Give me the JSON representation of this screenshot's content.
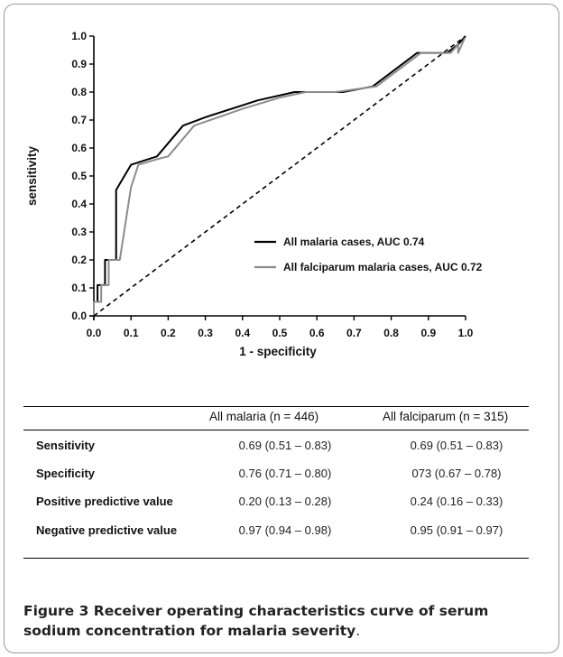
{
  "chart_data": {
    "type": "line",
    "xlabel": "1 - specificity",
    "ylabel": "sensitivity",
    "xlim": [
      0,
      1
    ],
    "ylim": [
      0,
      1
    ],
    "x_ticks": [
      "0.0",
      "0.1",
      "0.2",
      "0.3",
      "0.4",
      "0.5",
      "0.6",
      "0.7",
      "0.8",
      "0.9",
      "1.0"
    ],
    "y_ticks": [
      "0.0",
      "0.1",
      "0.2",
      "0.3",
      "0.4",
      "0.5",
      "0.6",
      "0.7",
      "0.8",
      "0.9",
      "1.0"
    ],
    "grid": false,
    "legend_position": "center-right",
    "series": [
      {
        "name": "All malaria cases, AUC 0.74",
        "color": "#000000",
        "x": [
          0,
          0,
          0.01,
          0.01,
          0.03,
          0.03,
          0.05,
          0.06,
          0.06,
          0.1,
          0.17,
          0.24,
          0.3,
          0.44,
          0.54,
          0.6,
          0.67,
          0.75,
          0.87,
          0.92,
          0.95,
          0.98,
          1.0
        ],
        "y": [
          0,
          0.05,
          0.05,
          0.11,
          0.11,
          0.2,
          0.2,
          0.2,
          0.45,
          0.54,
          0.57,
          0.68,
          0.71,
          0.77,
          0.8,
          0.8,
          0.8,
          0.82,
          0.94,
          0.94,
          0.94,
          0.97,
          1.0
        ]
      },
      {
        "name": "All falciparum malaria cases,  AUC 0.72",
        "color": "#8c8c8c",
        "x": [
          0,
          0,
          0.02,
          0.02,
          0.04,
          0.04,
          0.07,
          0.1,
          0.12,
          0.17,
          0.2,
          0.27,
          0.4,
          0.5,
          0.57,
          0.65,
          0.76,
          0.88,
          0.93,
          0.96,
          0.98,
          0.98,
          1.0
        ],
        "y": [
          0,
          0.05,
          0.05,
          0.11,
          0.11,
          0.2,
          0.2,
          0.46,
          0.54,
          0.56,
          0.57,
          0.68,
          0.74,
          0.78,
          0.8,
          0.8,
          0.82,
          0.94,
          0.94,
          0.94,
          0.97,
          0.94,
          1.0
        ]
      },
      {
        "name": "",
        "color": "#000000",
        "dashed": true,
        "x": [
          0,
          1
        ],
        "y": [
          0,
          1
        ]
      }
    ]
  },
  "table": {
    "headers": [
      "",
      "All malaria (n = 446)",
      "All falciparum (n = 315)"
    ],
    "rows": [
      {
        "label": "Sensitivity",
        "all_malaria": "0.69 (0.51 – 0.83)",
        "all_falciparum": "0.69 (0.51 – 0.83)"
      },
      {
        "label": "Specificity",
        "all_malaria": "0.76 (0.71 – 0.80)",
        "all_falciparum": "073 (0.67 – 0.78)"
      },
      {
        "label": "Positive predictive value",
        "all_malaria": "0.20 (0.13 – 0.28)",
        "all_falciparum": "0.24 (0.16 – 0.33)"
      },
      {
        "label": "Negative predictive value",
        "all_malaria": "0.97 (0.94 – 0.98)",
        "all_falciparum": "0.95 (0.91 – 0.97)"
      }
    ]
  },
  "caption": {
    "label": "Figure 3",
    "text": " Receiver operating characteristics curve of serum sodium concentration for malaria severity",
    "period": "."
  }
}
